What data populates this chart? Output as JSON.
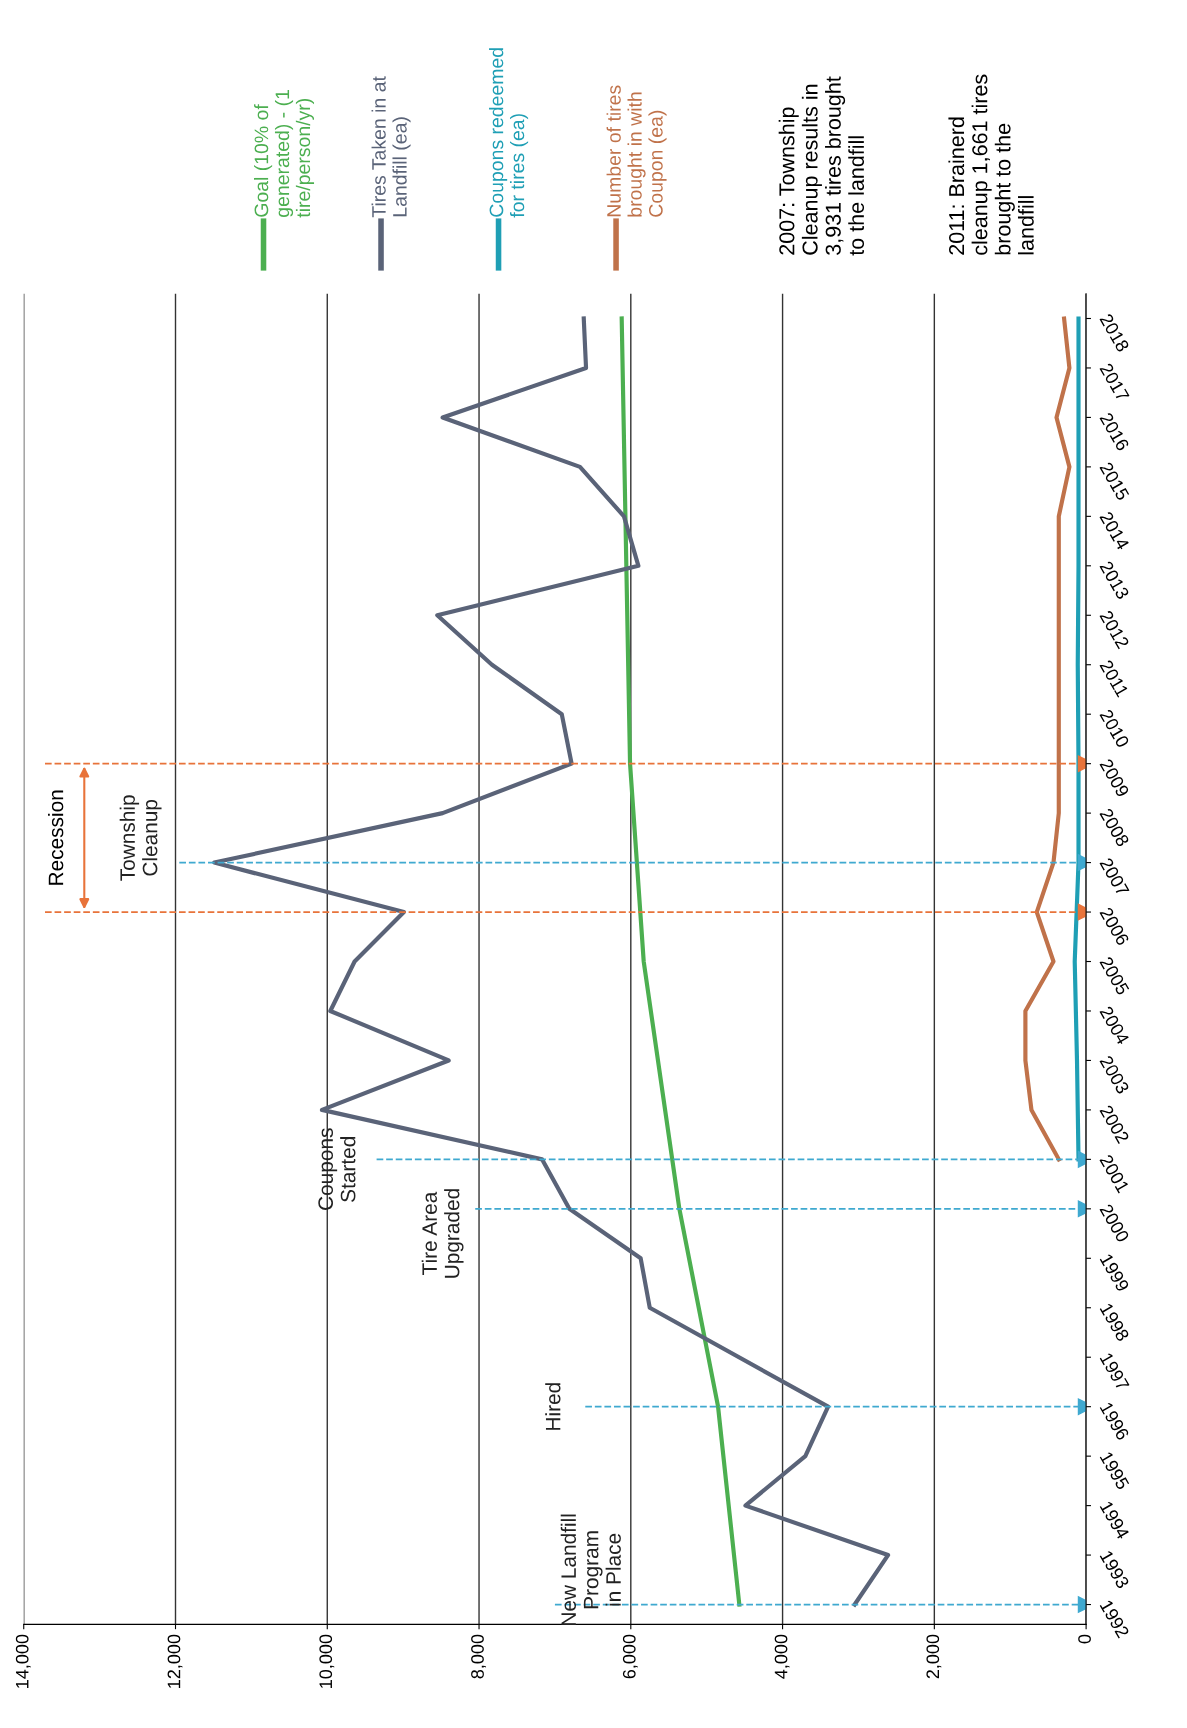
{
  "chart_data": {
    "type": "line",
    "orientation": "horizontal",
    "ylim": [
      1991.6,
      2018.5
    ],
    "yticks": [
      1992,
      1993,
      1994,
      1995,
      1996,
      1997,
      1998,
      1999,
      2000,
      2001,
      2002,
      2003,
      2004,
      2005,
      2006,
      2007,
      2008,
      2009,
      2010,
      2011,
      2012,
      2013,
      2014,
      2015,
      2016,
      2017,
      2018
    ],
    "xlim": [
      14000,
      0
    ],
    "xticks": [
      0,
      {
        "value": 2000,
        "label": "2,000"
      },
      {
        "value": 4000,
        "label": "4,000"
      },
      {
        "value": 6000,
        "label": "6,000"
      },
      {
        "value": 8000,
        "label": "8,000"
      },
      {
        "value": 10000,
        "label": "10,000"
      },
      {
        "value": 12000,
        "label": "12,000"
      },
      {
        "value": 14000,
        "label": "14,000"
      }
    ],
    "grid": "x",
    "legend": "top",
    "series": [
      {
        "name": "Goal (10% of\ngenerated) - (1\ntire/person/yr)",
        "color": "#4caf50",
        "x": [
          1992,
          1996,
          2000,
          2005,
          2009,
          2018
        ],
        "values": [
          4570,
          4850,
          5360,
          5830,
          6010,
          6120
        ]
      },
      {
        "name": "Tires Taken in at\nLandfill (ea)",
        "color": "#5a6378",
        "x": [
          1992,
          1993,
          1994,
          1995,
          1996,
          1998,
          1999,
          2000,
          2001,
          2002,
          2003,
          2004,
          2005,
          2006,
          2007,
          2008,
          2009,
          2010,
          2011,
          2012,
          2013,
          2014,
          2015,
          2016,
          2017,
          2018
        ],
        "values": [
          3050,
          2610,
          4490,
          3700,
          3400,
          5750,
          5870,
          6810,
          7170,
          10070,
          8400,
          9960,
          9640,
          8990,
          11490,
          8480,
          6780,
          6910,
          7830,
          8550,
          5900,
          6090,
          6670,
          8480,
          6590,
          6620
        ]
      },
      {
        "name": "Coupons redeemed\nfor tires (ea)",
        "color": "#1f9fb5",
        "x": [
          2001,
          2003,
          2005,
          2007,
          2009,
          2011,
          2013,
          2015,
          2017,
          2018
        ],
        "values": [
          100,
          120,
          150,
          100,
          100,
          110,
          100,
          100,
          100,
          100
        ]
      },
      {
        "name": "Number of tires\nbrought in with\nCoupon (ea)",
        "color": "#c0724a",
        "x": [
          2001,
          2002,
          2003,
          2004,
          2005,
          2006,
          2007,
          2008,
          2009,
          2010,
          2011,
          2012,
          2013,
          2014,
          2015,
          2016,
          2017,
          2018
        ],
        "values": [
          360,
          720,
          800,
          800,
          430,
          650,
          430,
          360,
          360,
          360,
          360,
          360,
          360,
          360,
          220,
          390,
          220,
          290
        ]
      }
    ],
    "annotations": [
      "Recession",
      "2007: Township\nCleanup results in\n3,931 tires brought\nto the landfill",
      "2011: Brainerd\ncleanup 1,661 tires\nbrought to the\nlandfill"
    ],
    "ref_lines": [
      {
        "axis": "y",
        "value": 1992,
        "label": "New Landfill\nProgram\nin Place",
        "color": "#3fa9d0",
        "line_style": "dashed"
      },
      {
        "axis": "y",
        "value": 1996,
        "label": "Hired",
        "color": "#3fa9d0",
        "line_style": "dashed"
      },
      {
        "axis": "y",
        "value": 2000,
        "label": "Tire Area\nUpgraded",
        "color": "#3fa9d0",
        "line_style": "dashed"
      },
      {
        "axis": "y",
        "value": 2001,
        "label": "Coupons\nStarted",
        "color": "#3fa9d0",
        "line_style": "dashed"
      },
      {
        "axis": "y",
        "value": 2007,
        "label": "Township\nCleanup",
        "color": "#3fa9d0",
        "line_style": "dashed"
      },
      {
        "axis": "y",
        "value": 2006,
        "label": null,
        "color": "#e8733a",
        "line_style": "dashed"
      },
      {
        "axis": "y",
        "value": 2009,
        "label": null,
        "color": "#e8733a",
        "line_style": "dashed"
      }
    ]
  }
}
